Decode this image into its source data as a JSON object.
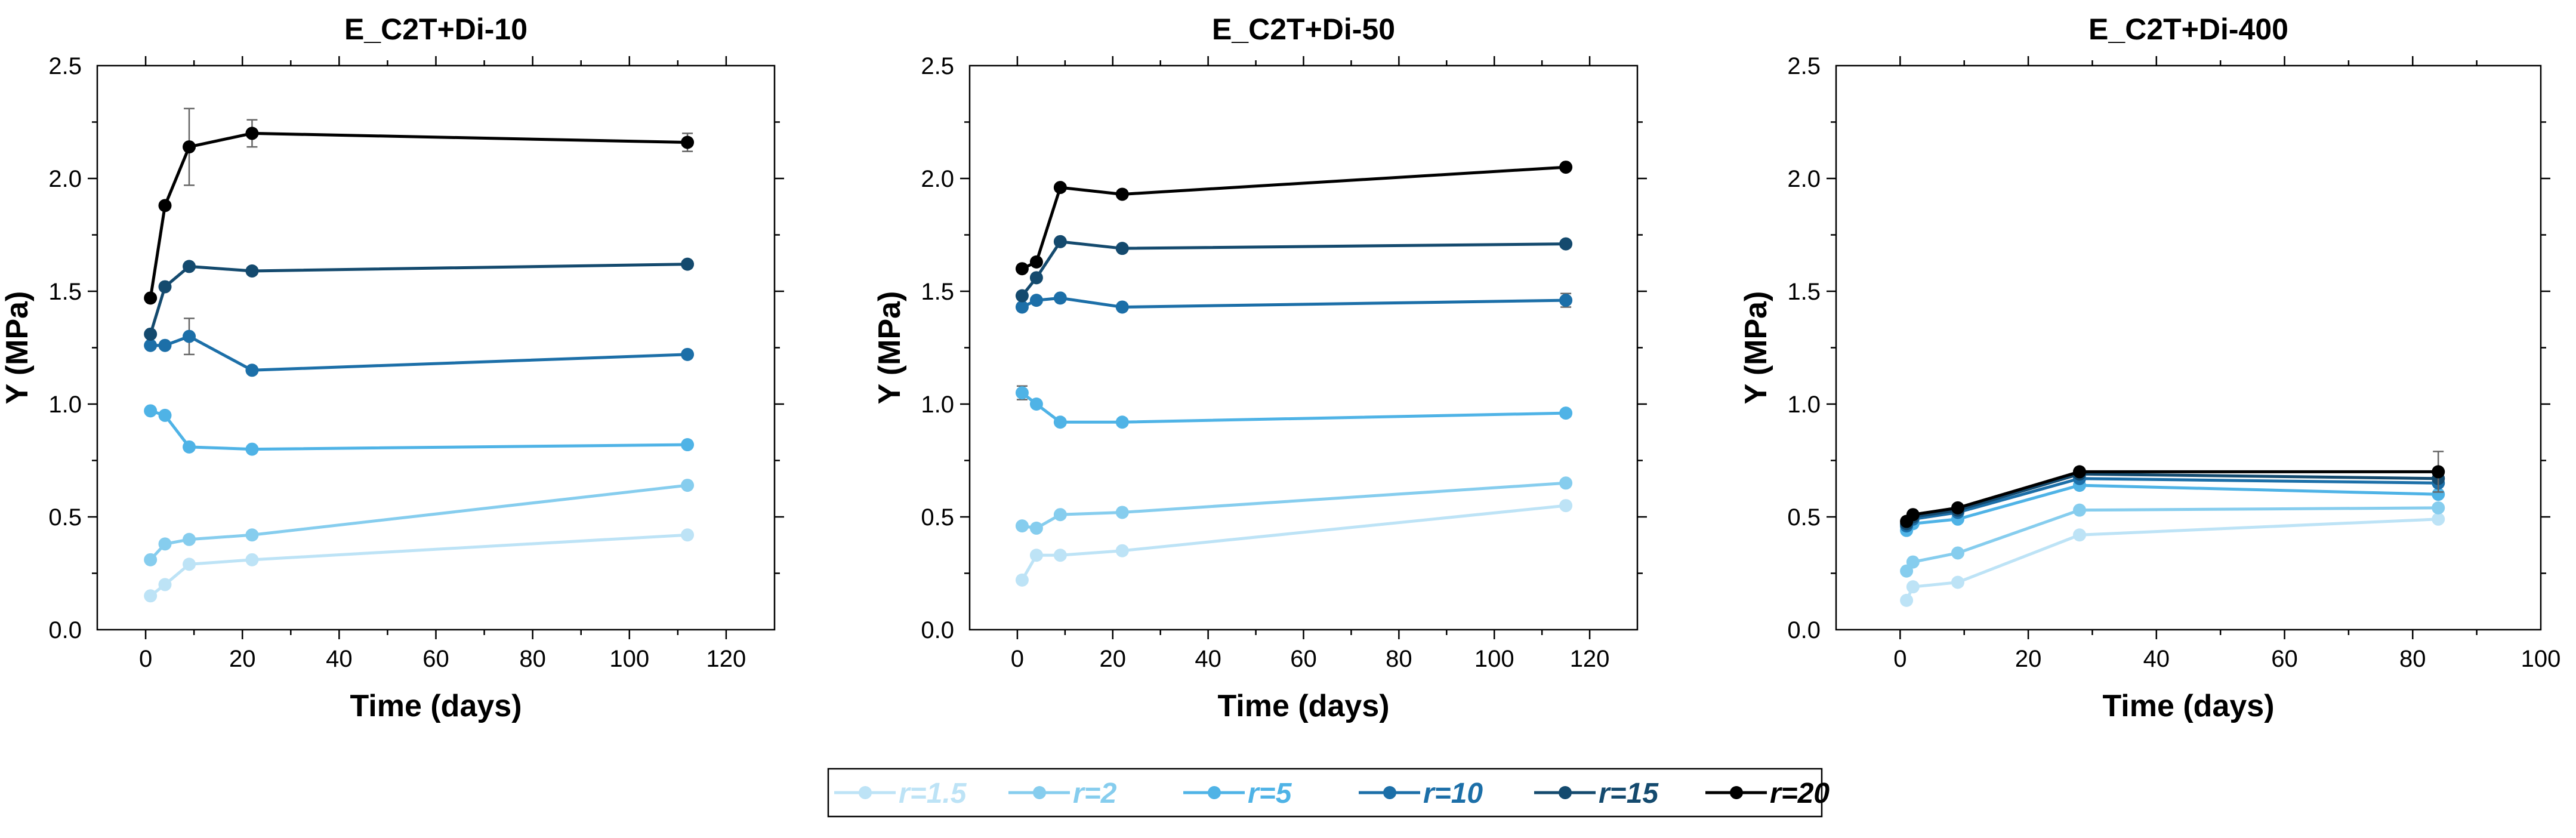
{
  "chart_data": [
    {
      "type": "line",
      "title": "E_C2T+Di-10",
      "xlabel": "Time (days)",
      "ylabel": "Y (MPa)",
      "xlim": [
        -10,
        130
      ],
      "ylim": [
        0,
        2.5
      ],
      "xticks": [
        0,
        20,
        40,
        60,
        80,
        100,
        120
      ],
      "yticks": [
        0.0,
        0.5,
        1.0,
        1.5,
        2.0,
        2.5
      ],
      "x": [
        1,
        4,
        9,
        22,
        112
      ],
      "series": [
        {
          "name": "r=1.5",
          "values": [
            0.15,
            0.2,
            0.29,
            0.31,
            0.42
          ],
          "errors": [
            0,
            0,
            0,
            0,
            0
          ]
        },
        {
          "name": "r=2",
          "values": [
            0.31,
            0.38,
            0.4,
            0.42,
            0.64
          ],
          "errors": [
            0,
            0,
            0,
            0,
            0
          ]
        },
        {
          "name": "r=5",
          "values": [
            0.97,
            0.95,
            0.81,
            0.8,
            0.82
          ],
          "errors": [
            0,
            0,
            0,
            0,
            0
          ]
        },
        {
          "name": "r=10",
          "values": [
            1.26,
            1.26,
            1.3,
            1.15,
            1.22
          ],
          "errors": [
            0,
            0,
            0.08,
            0,
            0
          ]
        },
        {
          "name": "r=15",
          "values": [
            1.31,
            1.52,
            1.61,
            1.59,
            1.62
          ],
          "errors": [
            0,
            0,
            0,
            0,
            0
          ]
        },
        {
          "name": "r=20",
          "values": [
            1.47,
            1.88,
            2.14,
            2.2,
            2.16
          ],
          "errors": [
            0,
            0,
            0.17,
            0.06,
            0.04
          ]
        }
      ]
    },
    {
      "type": "line",
      "title": "E_C2T+Di-50",
      "xlabel": "Time (days)",
      "ylabel": "Y (MPa)",
      "xlim": [
        -10,
        130
      ],
      "ylim": [
        0,
        2.5
      ],
      "xticks": [
        0,
        20,
        40,
        60,
        80,
        100,
        120
      ],
      "yticks": [
        0.0,
        0.5,
        1.0,
        1.5,
        2.0,
        2.5
      ],
      "x": [
        1,
        4,
        9,
        22,
        115
      ],
      "series": [
        {
          "name": "r=1.5",
          "values": [
            0.22,
            0.33,
            0.33,
            0.35,
            0.55
          ],
          "errors": [
            0,
            0,
            0,
            0,
            0
          ]
        },
        {
          "name": "r=2",
          "values": [
            0.46,
            0.45,
            0.51,
            0.52,
            0.65
          ],
          "errors": [
            0,
            0,
            0,
            0,
            0
          ]
        },
        {
          "name": "r=5",
          "values": [
            1.05,
            1.0,
            0.92,
            0.92,
            0.96
          ],
          "errors": [
            0.03,
            0,
            0,
            0,
            0
          ]
        },
        {
          "name": "r=10",
          "values": [
            1.43,
            1.46,
            1.47,
            1.43,
            1.46
          ],
          "errors": [
            0,
            0,
            0,
            0,
            0.03
          ]
        },
        {
          "name": "r=15",
          "values": [
            1.48,
            1.56,
            1.72,
            1.69,
            1.71
          ],
          "errors": [
            0,
            0,
            0,
            0,
            0
          ]
        },
        {
          "name": "r=20",
          "values": [
            1.6,
            1.63,
            1.96,
            1.93,
            2.05
          ],
          "errors": [
            0,
            0,
            0,
            0,
            0
          ]
        }
      ]
    },
    {
      "type": "line",
      "title": "E_C2T+Di-400",
      "xlabel": "Time (days)",
      "ylabel": "Y (MPa)",
      "xlim": [
        -10,
        100
      ],
      "ylim": [
        0,
        2.5
      ],
      "xticks": [
        0,
        20,
        40,
        60,
        80,
        100
      ],
      "yticks": [
        0.0,
        0.5,
        1.0,
        1.5,
        2.0,
        2.5
      ],
      "x": [
        1,
        2,
        9,
        28,
        84
      ],
      "series": [
        {
          "name": "r=1.5",
          "values": [
            0.13,
            0.19,
            0.21,
            0.42,
            0.49
          ],
          "errors": [
            0,
            0,
            0,
            0,
            0
          ]
        },
        {
          "name": "r=2",
          "values": [
            0.26,
            0.3,
            0.34,
            0.53,
            0.54
          ],
          "errors": [
            0,
            0,
            0,
            0,
            0
          ]
        },
        {
          "name": "r=5",
          "values": [
            0.44,
            0.47,
            0.49,
            0.64,
            0.6
          ],
          "errors": [
            0,
            0,
            0,
            0,
            0
          ]
        },
        {
          "name": "r=10",
          "values": [
            0.46,
            0.49,
            0.52,
            0.67,
            0.65
          ],
          "errors": [
            0,
            0,
            0,
            0,
            0
          ]
        },
        {
          "name": "r=15",
          "values": [
            0.47,
            0.5,
            0.53,
            0.69,
            0.67
          ],
          "errors": [
            0,
            0,
            0,
            0,
            0
          ]
        },
        {
          "name": "r=20",
          "values": [
            0.48,
            0.51,
            0.54,
            0.7,
            0.7
          ],
          "errors": [
            0,
            0,
            0,
            0,
            0.09
          ]
        }
      ]
    }
  ],
  "legend": {
    "entries": [
      {
        "label": "r=1.5",
        "color": "#bde3f6"
      },
      {
        "label": "r=2",
        "color": "#86cdee"
      },
      {
        "label": "r=5",
        "color": "#4fb3e6"
      },
      {
        "label": "r=10",
        "color": "#1c6fa8"
      },
      {
        "label": "r=15",
        "color": "#144a6e"
      },
      {
        "label": "r=20",
        "color": "#000000"
      }
    ]
  },
  "colors": {
    "r=1.5": "#bde3f6",
    "r=2": "#86cdee",
    "r=5": "#4fb3e6",
    "r=10": "#1c6fa8",
    "r=15": "#144a6e",
    "r=20": "#000000"
  }
}
